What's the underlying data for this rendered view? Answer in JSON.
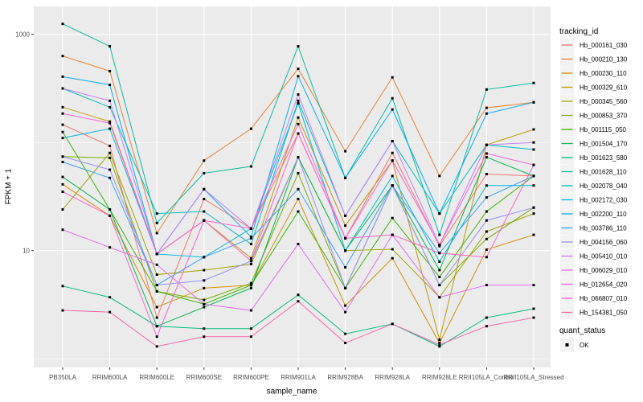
{
  "chart_data": {
    "type": "line",
    "title": "",
    "xlabel": "sample_name",
    "ylabel": "FPKM + 1",
    "y_scale": "log10",
    "ylim": [
      0.85,
      1800
    ],
    "y_tick_values": [
      1000,
      10
    ],
    "y_tick_labels": [
      "1000",
      "10"
    ],
    "y_minor_gridlines": [
      100,
      1
    ],
    "grid": true,
    "panel_bg": "#EBEBEB",
    "grid_color": "#FFFFFF",
    "point_marker": {
      "shape": "square",
      "color": "#000000"
    },
    "legend_position": "right",
    "categories": [
      "PB350LA",
      "RRIM600LA",
      "RRIM600LE",
      "RRIM600SE",
      "RRIM600PE",
      "RRIM901LA",
      "RRIM928BA",
      "RRIM928LA",
      "RRIM928LE",
      "RRII105LA_Control",
      "RRII105LA_Stressed"
    ],
    "series": [
      {
        "name": "Hb_000161_030",
        "color": "#F8766D",
        "values": [
          146,
          93,
          2.4,
          30,
          16,
          121,
          13,
          80,
          11,
          51,
          49
        ]
      },
      {
        "name": "Hb_000210_130",
        "color": "#EA8331",
        "values": [
          630,
          457,
          14.5,
          68,
          134,
          480,
          83,
          400,
          49,
          209,
          235
        ]
      },
      {
        "name": "Hb_000230_110",
        "color": "#D89000",
        "values": [
          41,
          21,
          3.0,
          4.5,
          4.8,
          30,
          3.1,
          8.5,
          1.4,
          10.2,
          14
        ]
      },
      {
        "name": "Hb_000329_610",
        "color": "#C09B00",
        "values": [
          212,
          156,
          9.3,
          19,
          8.5,
          170,
          17,
          68,
          1.5,
          95,
          132
        ]
      },
      {
        "name": "Hb_000345_560",
        "color": "#A3A500",
        "values": [
          24,
          80,
          6.0,
          6.6,
          7.5,
          73,
          10,
          10.3,
          3.7,
          15,
          22
        ]
      },
      {
        "name": "Hb_000853_370",
        "color": "#7CAE00",
        "values": [
          74,
          72,
          4.2,
          3.5,
          5.0,
          52,
          4.5,
          40,
          4.8,
          12.8,
          25
        ]
      },
      {
        "name": "Hb_001115_050",
        "color": "#39B600",
        "values": [
          125,
          24,
          4.2,
          3.2,
          4.8,
          23,
          4.5,
          20,
          5.7,
          23,
          49
        ]
      },
      {
        "name": "Hb_001504_170",
        "color": "#00BB4E",
        "values": [
          48,
          24,
          2.0,
          3.0,
          4.5,
          73,
          10,
          40,
          6.6,
          73,
          49
        ]
      },
      {
        "name": "Hb_001623_580",
        "color": "#00BF7D",
        "values": [
          4.7,
          3.7,
          2.0,
          1.9,
          1.9,
          3.9,
          1.7,
          2.1,
          1.3,
          2.4,
          2.9
        ]
      },
      {
        "name": "Hb_001628_110",
        "color": "#00C1A3",
        "values": [
          1250,
          775,
          18,
          52,
          60,
          775,
          47,
          256,
          14,
          309,
          355
        ]
      },
      {
        "name": "Hb_002078_040",
        "color": "#00BFC4",
        "values": [
          316,
          212,
          22,
          23,
          11.5,
          243,
          21,
          103,
          22,
          95,
          86
        ]
      },
      {
        "name": "Hb_002172_030",
        "color": "#00BAE0",
        "values": [
          110,
          134,
          9.3,
          8.7,
          16,
          230,
          10,
          49,
          7.9,
          40,
          40
        ]
      },
      {
        "name": "Hb_002200_110",
        "color": "#00B0F6",
        "values": [
          406,
          341,
          9.3,
          37,
          13.4,
          410,
          47,
          202,
          22,
          185,
          235
        ]
      },
      {
        "name": "Hb_003786_110",
        "color": "#35A2FF",
        "values": [
          66,
          47,
          4.8,
          8.7,
          13,
          37,
          7.0,
          40,
          9.5,
          31,
          49
        ]
      },
      {
        "name": "Hb_004156_060",
        "color": "#9590FF",
        "values": [
          74,
          56,
          4.8,
          5.3,
          8.0,
          73,
          4.5,
          40,
          4.8,
          19,
          25
        ]
      },
      {
        "name": "Hb_005410_010",
        "color": "#C77CFF",
        "values": [
          316,
          243,
          9.3,
          37,
          16,
          278,
          21,
          103,
          11.3,
          95,
          100
        ]
      },
      {
        "name": "Hb_006029_010",
        "color": "#E76BF3",
        "values": [
          15.6,
          10.7,
          7.4,
          3.2,
          2.8,
          11.5,
          2.7,
          14,
          3.7,
          4.8,
          4.8
        ]
      },
      {
        "name": "Hb_012654_020",
        "color": "#FA62DB",
        "values": [
          185,
          151,
          9.3,
          19,
          16,
          148,
          13,
          68,
          11.3,
          79,
          62
        ]
      },
      {
        "name": "Hb_066807_010",
        "color": "#FF61CC",
        "values": [
          35,
          21,
          1.6,
          19,
          8.0,
          121,
          13,
          14,
          9.5,
          8.7,
          62
        ]
      },
      {
        "name": "Hb_154381_050",
        "color": "#FF65AC",
        "values": [
          2.8,
          2.7,
          1.3,
          1.6,
          1.6,
          3.4,
          1.4,
          2.1,
          1.35,
          2.0,
          2.4
        ]
      }
    ],
    "legends": [
      {
        "title": "tracking_id"
      },
      {
        "title": "quant_status",
        "items": [
          {
            "label": "OK",
            "marker": "square",
            "color": "#000000"
          }
        ]
      }
    ]
  }
}
